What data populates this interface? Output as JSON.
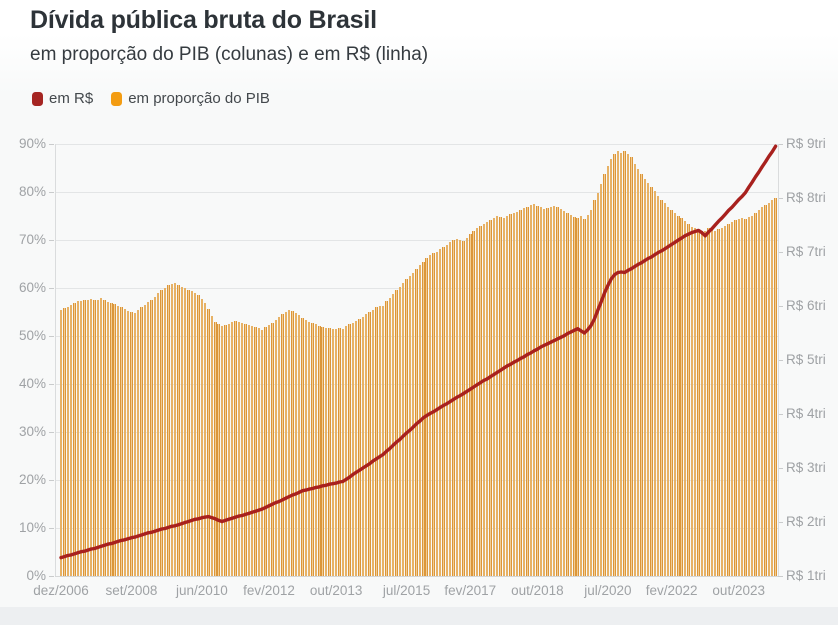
{
  "title": "Dívida pública bruta do Brasil",
  "subtitle": "em proporção do PIB (colunas) e em R$ (linha)",
  "legend": [
    {
      "label": "em R$",
      "color": "#a52522"
    },
    {
      "label": "em proporção do PIB",
      "color": "#f39c12"
    }
  ],
  "colors": {
    "line": "#a8211e",
    "bar_edge": "#db963a",
    "bar_fill": "#f3cd93",
    "axis_text": "#9fa2a5",
    "grid": "#e3e5e6",
    "title_text": "#2d3338",
    "plot_background": "#f8f9f9"
  },
  "chart_data": {
    "type": "bar+line",
    "x_monthly": true,
    "x_start": "dez/2006",
    "x_end": "set/2024",
    "x_ticks": [
      {
        "label": "dez/2006",
        "month": 0
      },
      {
        "label": "set/2008",
        "month": 21
      },
      {
        "label": "jun/2010",
        "month": 42
      },
      {
        "label": "fev/2012",
        "month": 62
      },
      {
        "label": "out/2013",
        "month": 82
      },
      {
        "label": "jul/2015",
        "month": 103
      },
      {
        "label": "fev/2017",
        "month": 122
      },
      {
        "label": "out/2018",
        "month": 142
      },
      {
        "label": "jul/2020",
        "month": 163
      },
      {
        "label": "fev/2022",
        "month": 182
      },
      {
        "label": "out/2023",
        "month": 202
      }
    ],
    "left_axis": {
      "title": "% do PIB",
      "range": [
        0,
        90
      ],
      "tick_values": [
        0,
        10,
        20,
        30,
        40,
        50,
        60,
        70,
        80,
        90
      ],
      "tick_labels": [
        "0%",
        "10%",
        "20%",
        "30%",
        "40%",
        "50%",
        "60%",
        "70%",
        "80%",
        "90%"
      ]
    },
    "right_axis": {
      "title": "R$ trilhões",
      "range": [
        1,
        9
      ],
      "tick_values": [
        1,
        2,
        3,
        4,
        5,
        6,
        7,
        8,
        9
      ],
      "tick_labels": [
        "R$ 1tri",
        "R$ 2tri",
        "R$ 3tri",
        "R$ 4tri",
        "R$ 5tri",
        "R$ 6tri",
        "R$ 7tri",
        "R$ 8tri",
        "R$ 9tri"
      ]
    },
    "grid": true,
    "legend_position": "top-left",
    "series": [
      {
        "name": "em proporção do PIB",
        "type": "bar",
        "axis": "left",
        "unit": "% do PIB",
        "color": "#f39c12",
        "values": [
          55.5,
          55.8,
          56.1,
          56.5,
          56.9,
          57.3,
          57.2,
          57.4,
          57.6,
          57.8,
          57.6,
          57.4,
          57.9,
          57.4,
          57.1,
          56.8,
          56.6,
          56.3,
          56.0,
          55.6,
          55.2,
          54.9,
          54.8,
          55.4,
          56.0,
          56.5,
          57.1,
          57.6,
          58.2,
          58.9,
          59.5,
          60.1,
          60.6,
          60.9,
          61.0,
          60.7,
          60.2,
          60.0,
          59.6,
          59.3,
          59.0,
          58.5,
          57.8,
          56.8,
          55.6,
          54.2,
          53.0,
          52.4,
          52.0,
          52.3,
          52.6,
          53.0,
          53.2,
          53.0,
          52.7,
          52.4,
          52.2,
          52.0,
          51.8,
          51.6,
          51.3,
          51.8,
          52.3,
          52.8,
          53.4,
          54.0,
          54.6,
          55.1,
          55.4,
          55.2,
          54.8,
          54.4,
          53.7,
          53.4,
          53.0,
          52.7,
          52.4,
          52.1,
          51.9,
          51.7,
          51.6,
          51.5,
          51.4,
          51.6,
          51.5,
          52.0,
          52.4,
          52.8,
          53.2,
          53.6,
          54.0,
          54.5,
          55.0,
          55.5,
          56.0,
          56.3,
          56.3,
          57.3,
          58.0,
          58.8,
          59.5,
          60.2,
          61.0,
          61.8,
          62.5,
          63.2,
          64.0,
          64.8,
          65.5,
          66.2,
          66.8,
          67.2,
          67.6,
          68.1,
          68.6,
          69.0,
          69.5,
          69.9,
          70.3,
          70.1,
          69.8,
          70.5,
          71.2,
          71.8,
          72.4,
          72.9,
          73.4,
          73.8,
          74.2,
          74.6,
          75.0,
          74.8,
          74.5,
          75.0,
          75.4,
          75.7,
          75.9,
          76.2,
          76.6,
          76.9,
          77.2,
          77.4,
          77.1,
          76.8,
          76.5,
          76.6,
          76.9,
          77.1,
          76.8,
          76.4,
          76.0,
          75.6,
          75.2,
          74.8,
          74.6,
          74.9,
          74.4,
          75.3,
          76.2,
          78.4,
          79.8,
          81.7,
          83.8,
          85.4,
          86.9,
          88.0,
          88.6,
          88.2,
          88.6,
          88.0,
          87.3,
          85.9,
          84.7,
          83.8,
          82.8,
          81.9,
          81.0,
          80.2,
          79.2,
          78.4,
          77.8,
          76.9,
          76.3,
          75.7,
          75.1,
          74.5,
          73.9,
          73.3,
          72.8,
          72.4,
          72.1,
          71.9,
          71.8,
          72.4,
          72.1,
          71.9,
          72.2,
          72.6,
          73.0,
          73.4,
          73.8,
          74.1,
          74.4,
          74.6,
          74.4,
          74.7,
          75.1,
          75.7,
          76.2,
          76.8,
          77.3,
          77.8,
          78.3,
          78.8
        ]
      },
      {
        "name": "em R$",
        "type": "line",
        "axis": "right",
        "unit": "R$ tri",
        "color": "#a8211e",
        "values": [
          1.34,
          1.36,
          1.38,
          1.39,
          1.41,
          1.43,
          1.45,
          1.46,
          1.48,
          1.5,
          1.51,
          1.53,
          1.55,
          1.57,
          1.59,
          1.6,
          1.62,
          1.64,
          1.66,
          1.67,
          1.69,
          1.71,
          1.72,
          1.74,
          1.76,
          1.78,
          1.8,
          1.81,
          1.83,
          1.85,
          1.87,
          1.88,
          1.9,
          1.92,
          1.93,
          1.95,
          1.97,
          1.99,
          2.01,
          2.03,
          2.05,
          2.06,
          2.08,
          2.09,
          2.1,
          2.08,
          2.06,
          2.03,
          2.01,
          2.03,
          2.05,
          2.07,
          2.09,
          2.11,
          2.12,
          2.14,
          2.16,
          2.18,
          2.2,
          2.22,
          2.24,
          2.27,
          2.3,
          2.33,
          2.36,
          2.38,
          2.41,
          2.44,
          2.47,
          2.5,
          2.52,
          2.55,
          2.58,
          2.59,
          2.61,
          2.62,
          2.64,
          2.65,
          2.67,
          2.68,
          2.7,
          2.71,
          2.72,
          2.74,
          2.75,
          2.79,
          2.83,
          2.88,
          2.92,
          2.96,
          3.0,
          3.04,
          3.08,
          3.13,
          3.17,
          3.21,
          3.25,
          3.31,
          3.36,
          3.42,
          3.48,
          3.53,
          3.59,
          3.65,
          3.7,
          3.76,
          3.82,
          3.87,
          3.93,
          3.97,
          4.01,
          4.04,
          4.08,
          4.12,
          4.16,
          4.19,
          4.23,
          4.27,
          4.31,
          4.34,
          4.38,
          4.42,
          4.46,
          4.5,
          4.54,
          4.58,
          4.62,
          4.65,
          4.69,
          4.73,
          4.77,
          4.81,
          4.85,
          4.89,
          4.92,
          4.96,
          4.99,
          5.03,
          5.06,
          5.1,
          5.13,
          5.17,
          5.2,
          5.24,
          5.27,
          5.3,
          5.33,
          5.36,
          5.39,
          5.42,
          5.45,
          5.49,
          5.52,
          5.55,
          5.58,
          5.54,
          5.5,
          5.56,
          5.64,
          5.76,
          5.92,
          6.08,
          6.24,
          6.38,
          6.5,
          6.58,
          6.62,
          6.63,
          6.62,
          6.66,
          6.69,
          6.73,
          6.77,
          6.8,
          6.84,
          6.88,
          6.91,
          6.95,
          6.99,
          7.02,
          7.06,
          7.1,
          7.14,
          7.18,
          7.22,
          7.26,
          7.3,
          7.33,
          7.36,
          7.38,
          7.4,
          7.36,
          7.3,
          7.37,
          7.43,
          7.5,
          7.57,
          7.63,
          7.7,
          7.77,
          7.83,
          7.9,
          7.97,
          8.03,
          8.1,
          8.2,
          8.29,
          8.39,
          8.48,
          8.58,
          8.67,
          8.77,
          8.86,
          8.96
        ]
      }
    ]
  }
}
